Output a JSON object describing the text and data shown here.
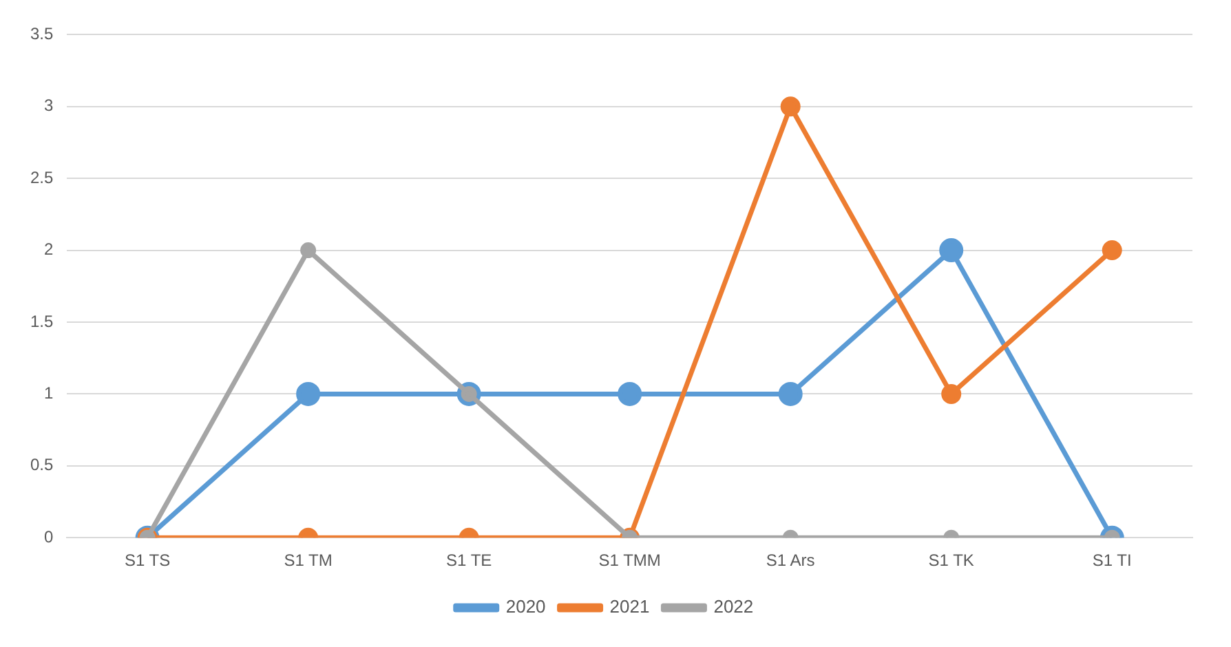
{
  "chart_data": {
    "type": "line",
    "categories": [
      "S1 TS",
      "S1 TM",
      "S1 TE",
      "S1 TMM",
      "S1 Ars",
      "S1 TK",
      "S1 TI"
    ],
    "series": [
      {
        "name": "2020",
        "color": "#5b9bd5",
        "values": [
          0,
          1,
          1,
          1,
          1,
          2,
          0
        ]
      },
      {
        "name": "2021",
        "color": "#ed7d31",
        "values": [
          0,
          0,
          0,
          0,
          3,
          1,
          2
        ]
      },
      {
        "name": "2022",
        "color": "#a5a5a5",
        "values": [
          0,
          2,
          1,
          0,
          0,
          0,
          0
        ]
      }
    ],
    "ylim": [
      0,
      3.5
    ],
    "yticks": [
      0,
      0.5,
      1,
      1.5,
      2,
      2.5,
      3,
      3.5
    ],
    "grid": "y",
    "legend": "bottom",
    "marker": "circle",
    "line_style": "solid"
  }
}
